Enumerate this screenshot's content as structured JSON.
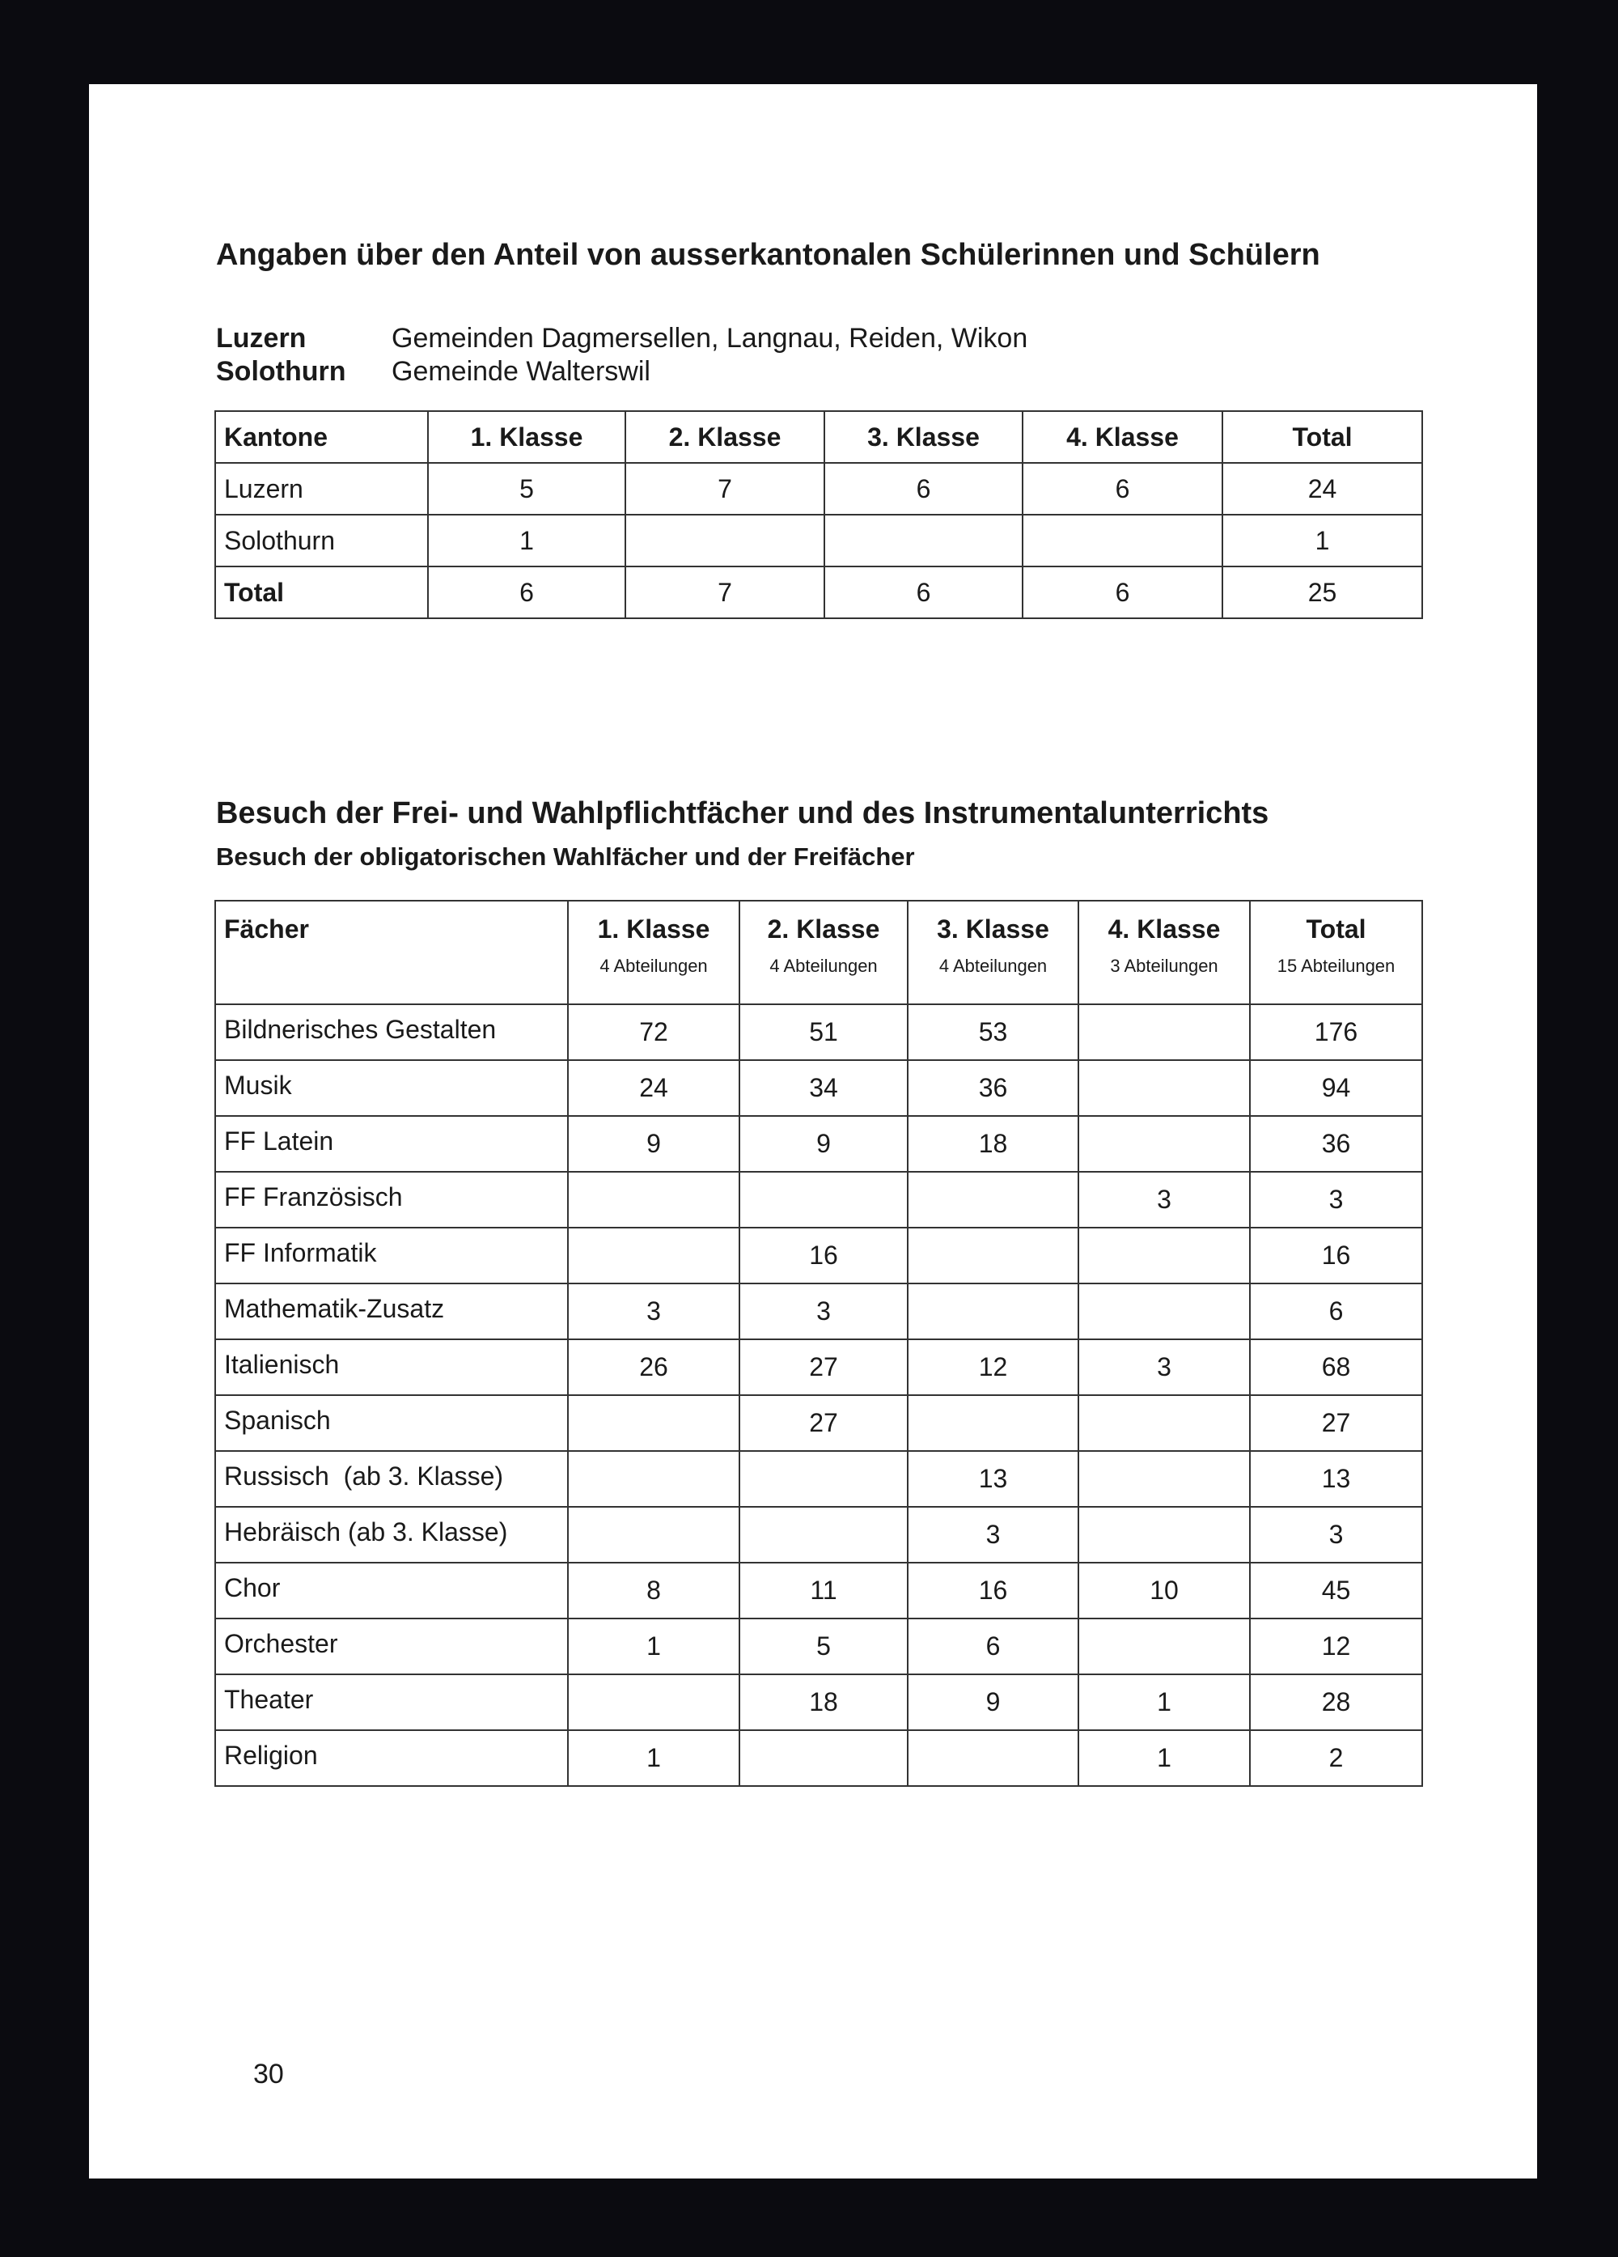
{
  "section1": {
    "title": "Angaben über den Anteil von ausserkantonalen Schülerinnen und Schülern",
    "info": [
      {
        "label": "Luzern",
        "value": "Gemeinden Dagmersellen, Langnau, Reiden, Wikon"
      },
      {
        "label": "Solothurn",
        "value": "Gemeinde Walterswil"
      }
    ],
    "table": {
      "headers": [
        "Kantone",
        "1. Klasse",
        "2. Klasse",
        "3. Klasse",
        "4. Klasse",
        "Total"
      ],
      "rows": [
        [
          "Luzern",
          "5",
          "7",
          "6",
          "6",
          "24"
        ],
        [
          "Solothurn",
          "1",
          "",
          "",
          "",
          "1"
        ],
        [
          "Total",
          "6",
          "7",
          "6",
          "6",
          "25"
        ]
      ]
    }
  },
  "section2": {
    "title": "Besuch der Frei- und Wahlpflichtfächer und des Instrumentalunterrichts",
    "subtitle": "Besuch der obligatorischen Wahlfächer und der Freifächer",
    "table": {
      "headers": [
        {
          "label": "Fächer",
          "sub": ""
        },
        {
          "label": "1. Klasse",
          "sub": "4 Abteilungen"
        },
        {
          "label": "2. Klasse",
          "sub": "4 Abteilungen"
        },
        {
          "label": "3. Klasse",
          "sub": "4 Abteilungen"
        },
        {
          "label": "4. Klasse",
          "sub": "3 Abteilungen"
        },
        {
          "label": "Total",
          "sub": "15 Abteilungen"
        }
      ],
      "rows": [
        [
          "Bildnerisches Gestalten",
          "72",
          "51",
          "53",
          "",
          "176"
        ],
        [
          "Musik",
          "24",
          "34",
          "36",
          "",
          "94"
        ],
        [
          "FF Latein",
          "9",
          "9",
          "18",
          "",
          "36"
        ],
        [
          "FF Französisch",
          "",
          "",
          "",
          "3",
          "3"
        ],
        [
          "FF Informatik",
          "",
          "16",
          "",
          "",
          "16"
        ],
        [
          "Mathematik-Zusatz",
          "3",
          "3",
          "",
          "",
          "6"
        ],
        [
          "Italienisch",
          "26",
          "27",
          "12",
          "3",
          "68"
        ],
        [
          "Spanisch",
          "",
          "27",
          "",
          "",
          "27"
        ],
        [
          "Russisch  (ab 3. Klasse)",
          "",
          "",
          "13",
          "",
          "13"
        ],
        [
          "Hebräisch (ab 3. Klasse)",
          "",
          "",
          "3",
          "",
          "3"
        ],
        [
          "Chor",
          "8",
          "11",
          "16",
          "10",
          "45"
        ],
        [
          "Orchester",
          "1",
          "5",
          "6",
          "",
          "12"
        ],
        [
          "Theater",
          "",
          "18",
          "9",
          "1",
          "28"
        ],
        [
          "Religion",
          "1",
          "",
          "",
          "1",
          "2"
        ]
      ]
    }
  },
  "page_number": "30"
}
